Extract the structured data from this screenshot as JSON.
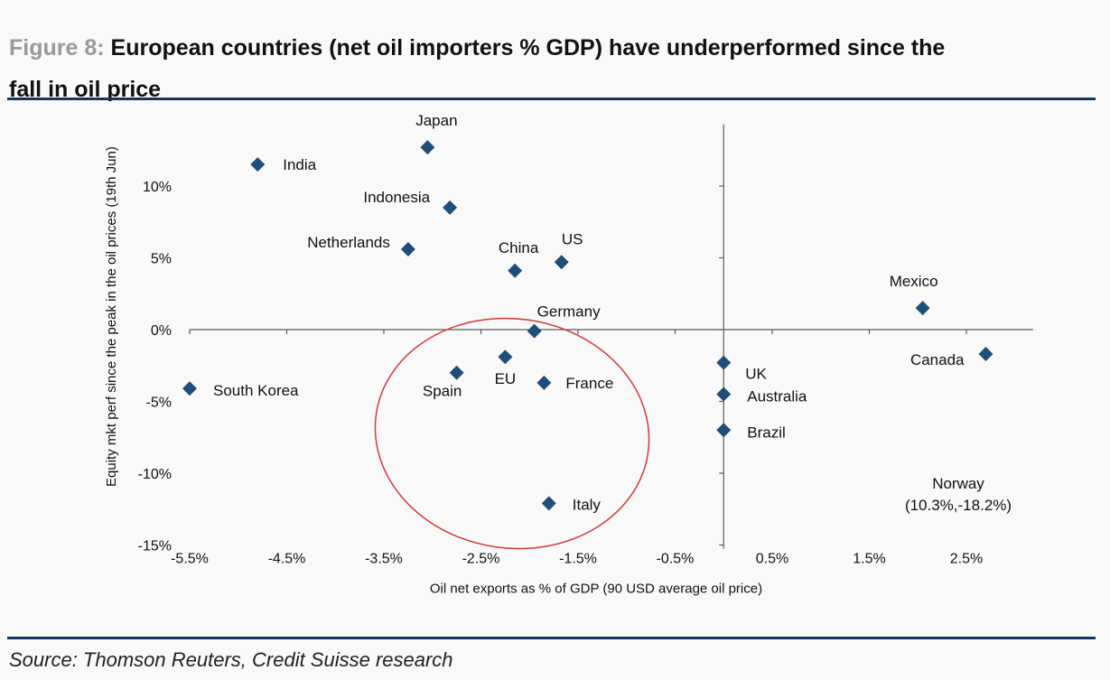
{
  "figure": {
    "prefix": "Figure 8: ",
    "title_line1": "European countries (net oil importers % GDP) have underperformed since the",
    "title_line2": "fall in oil price"
  },
  "source": "Source: Thomson Reuters, Credit Suisse research",
  "chart_data": {
    "type": "scatter",
    "xlabel": "Oil net exports as % of GDP (90 USD average oil price)",
    "ylabel": "Equity mkt perf since the peak in the oil prices (19th Jun)",
    "xlim": [
      -5.5,
      3.0
    ],
    "ylim": [
      -15,
      14.3
    ],
    "x_ticks": [
      -5.5,
      -4.5,
      -3.5,
      -2.5,
      -1.5,
      -0.5,
      0.5,
      1.5,
      2.5
    ],
    "x_tick_labels": [
      "-5.5%",
      "-4.5%",
      "-3.5%",
      "-2.5%",
      "-1.5%",
      "-0.5%",
      "0.5%",
      "1.5%",
      "2.5%"
    ],
    "y_ticks": [
      10,
      5,
      0,
      -5,
      -10,
      -15
    ],
    "y_tick_labels": [
      "10%",
      "5%",
      "0%",
      "-5%",
      "-10%",
      "-15%"
    ],
    "grid": false,
    "marker_color": "#1f4e79",
    "annotation_color": "#d33a3a",
    "points": [
      {
        "label": "Japan",
        "x": -3.05,
        "y": 12.7
      },
      {
        "label": "India",
        "x": -4.8,
        "y": 11.5
      },
      {
        "label": "Indonesia",
        "x": -2.82,
        "y": 8.5
      },
      {
        "label": "Netherlands",
        "x": -3.25,
        "y": 5.6
      },
      {
        "label": "China",
        "x": -2.15,
        "y": 4.1
      },
      {
        "label": "US",
        "x": -1.67,
        "y": 4.7
      },
      {
        "label": "Germany",
        "x": -1.95,
        "y": -0.1
      },
      {
        "label": "EU",
        "x": -2.25,
        "y": -1.9
      },
      {
        "label": "Spain",
        "x": -2.75,
        "y": -3.0
      },
      {
        "label": "France",
        "x": -1.85,
        "y": -3.7
      },
      {
        "label": "South Korea",
        "x": -5.5,
        "y": -4.1
      },
      {
        "label": "Italy",
        "x": -1.8,
        "y": -12.1
      },
      {
        "label": "UK",
        "x": 0.0,
        "y": -2.3
      },
      {
        "label": "Australia",
        "x": 0.0,
        "y": -4.5
      },
      {
        "label": "Brazil",
        "x": 0.0,
        "y": -7.0
      },
      {
        "label": "Mexico",
        "x": 2.05,
        "y": 1.5
      },
      {
        "label": "Canada",
        "x": 2.7,
        "y": -1.7
      }
    ],
    "off_chart_note": {
      "line1": "Norway",
      "line2": "(10.3%,-18.2%)"
    }
  }
}
